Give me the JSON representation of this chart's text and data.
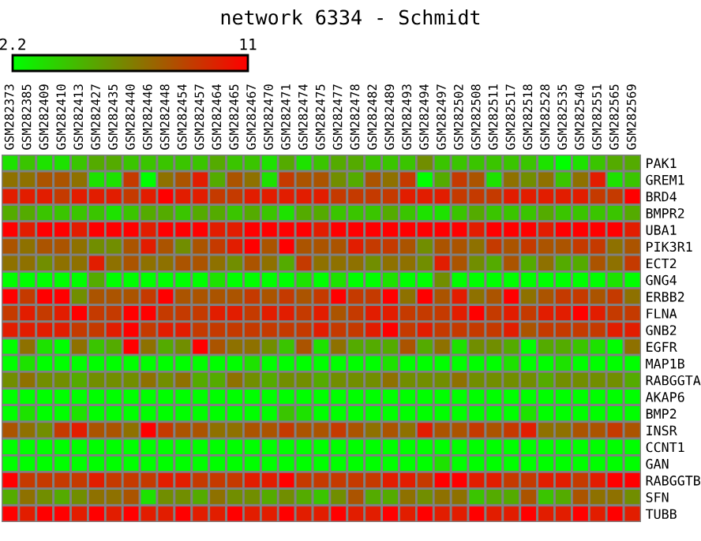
{
  "chart_data": {
    "type": "heatmap",
    "title": "network 6334 - Schmidt",
    "categories": [
      "GSM282373",
      "GSM282385",
      "GSM282409",
      "GSM282410",
      "GSM282413",
      "GSM282427",
      "GSM282435",
      "GSM282440",
      "GSM282446",
      "GSM282448",
      "GSM282454",
      "GSM282457",
      "GSM282464",
      "GSM282465",
      "GSM282467",
      "GSM282470",
      "GSM282471",
      "GSM282474",
      "GSM282475",
      "GSM282477",
      "GSM282478",
      "GSM282482",
      "GSM282489",
      "GSM282493",
      "GSM282494",
      "GSM282497",
      "GSM282502",
      "GSM282508",
      "GSM282511",
      "GSM282517",
      "GSM282518",
      "GSM282528",
      "GSM282535",
      "GSM282540",
      "GSM282551",
      "GSM282565",
      "GSM282569"
    ],
    "y_categories": [
      "PAK1",
      "GREM1",
      "BRD4",
      "BMPR2",
      "UBA1",
      "PIK3R1",
      "ECT2",
      "GNG4",
      "ERBB2",
      "FLNA",
      "GNB2",
      "EGFR",
      "MAP1B",
      "RABGGTA",
      "AKAP6",
      "BMP2",
      "INSR",
      "CCNT1",
      "GAN",
      "RABGGTB",
      "SFN",
      "TUBB"
    ],
    "clim": [
      2.2,
      11
    ],
    "cticks": [
      2.2,
      11
    ],
    "cells": [
      [
        3.2,
        4.2,
        3.2,
        3.2,
        4.2,
        5.1,
        5.1,
        4.2,
        4.2,
        4.2,
        4.2,
        4.2,
        5.1,
        4.2,
        4.2,
        3.2,
        5.1,
        3.2,
        4.2,
        5.1,
        5.1,
        4.2,
        4.2,
        4.2,
        6.1,
        4.2,
        4.2,
        4.2,
        4.2,
        4.2,
        4.2,
        3.2,
        2.2,
        3.2,
        4.2,
        5.1,
        5.1
      ],
      [
        7.1,
        7.1,
        8.1,
        8.1,
        7.1,
        3.2,
        3.2,
        9,
        2.2,
        7.1,
        8.1,
        10,
        5.1,
        8.1,
        7.1,
        3.2,
        9,
        8.1,
        8.1,
        6.1,
        5.1,
        8.1,
        7.1,
        9,
        2.2,
        5.1,
        9,
        8.1,
        3.2,
        7.1,
        6.1,
        7.1,
        4.2,
        7.1,
        10,
        3.2,
        4.2
      ],
      [
        10,
        10,
        10,
        9,
        10,
        10,
        10,
        9,
        10,
        11,
        10,
        10,
        9,
        9,
        10,
        10,
        10,
        10,
        10,
        9,
        9,
        9,
        9,
        10,
        10,
        10,
        9,
        9,
        9,
        10,
        10,
        10,
        10,
        10,
        9,
        9,
        11
      ],
      [
        5.1,
        5.1,
        4.2,
        4.2,
        4.2,
        4.2,
        3.2,
        4.2,
        5.1,
        5.1,
        4.2,
        5.1,
        5.1,
        4.2,
        5.1,
        4.2,
        3.2,
        5.1,
        5.1,
        4.2,
        4.2,
        4.2,
        5.1,
        4.2,
        3.2,
        3.2,
        4.2,
        5.1,
        4.2,
        4.2,
        4.2,
        5.1,
        4.2,
        4.2,
        4.2,
        4.2,
        5.1
      ],
      [
        11,
        10,
        11,
        11,
        10,
        11,
        11,
        11,
        10,
        11,
        11,
        11,
        10,
        10,
        11,
        11,
        11,
        11,
        10,
        11,
        11,
        11,
        11,
        11,
        11,
        11,
        11,
        10,
        11,
        11,
        11,
        10,
        11,
        11,
        11,
        11,
        10
      ],
      [
        8.1,
        7.1,
        8.1,
        8.1,
        7.1,
        6.1,
        6.1,
        8.1,
        10,
        8.1,
        6.1,
        8.1,
        9,
        10,
        11,
        8.1,
        11,
        8.1,
        8.1,
        8.1,
        10,
        9,
        9,
        8.1,
        6.1,
        8.1,
        8.1,
        7.1,
        9,
        8.1,
        9,
        8.1,
        8.1,
        9,
        9,
        7.1,
        8.1
      ],
      [
        7.1,
        7.1,
        6.1,
        7.1,
        7.1,
        10,
        7.1,
        8.1,
        7.1,
        7.1,
        8.1,
        8.1,
        7.1,
        6.1,
        8.1,
        7.1,
        5.1,
        9,
        7.1,
        7.1,
        7.1,
        6.1,
        7.1,
        7.1,
        6.1,
        10,
        8.1,
        6.1,
        5.1,
        8.1,
        5.1,
        7.1,
        5.1,
        5.1,
        8.1,
        7.1,
        9
      ],
      [
        2.2,
        2.2,
        2.2,
        2.2,
        2.2,
        5.1,
        2.2,
        2.2,
        2.2,
        2.2,
        2.2,
        2.2,
        3.2,
        2.2,
        2.2,
        2.2,
        2.2,
        3.2,
        2.2,
        3.2,
        2.2,
        2.2,
        3.2,
        2.2,
        2.2,
        6.1,
        2.2,
        2.2,
        2.2,
        2.2,
        2.2,
        2.2,
        2.2,
        2.2,
        2.2,
        3.2,
        2.2
      ],
      [
        11,
        9,
        11,
        11,
        6.1,
        8.1,
        8.1,
        8.1,
        9,
        11,
        8.1,
        8.1,
        8.1,
        8.1,
        9,
        8.1,
        9,
        8.1,
        9,
        11,
        9,
        9,
        11,
        7.1,
        11,
        8.1,
        10,
        7.1,
        8.1,
        11,
        7.1,
        8.1,
        9,
        9,
        8.1,
        9,
        7.1
      ],
      [
        9,
        10,
        9,
        10,
        11,
        9,
        9,
        11,
        11,
        9,
        9,
        9,
        10,
        10,
        9,
        10,
        10,
        9,
        10,
        8.1,
        9,
        10,
        10,
        9,
        9,
        9,
        10,
        11,
        9,
        10,
        9,
        10,
        10,
        11,
        10,
        9,
        9
      ],
      [
        10,
        10,
        10,
        10,
        9,
        9,
        10,
        11,
        9,
        10,
        10,
        9,
        9,
        9,
        9,
        9,
        9,
        9,
        10,
        9,
        9,
        10,
        11,
        9,
        10,
        9,
        9,
        9,
        9,
        10,
        8.1,
        9,
        9,
        9,
        9,
        10,
        10
      ],
      [
        2.2,
        7.1,
        3.2,
        2.2,
        7.1,
        4.2,
        5.1,
        11,
        7.1,
        5.1,
        6.1,
        11,
        8.1,
        7.1,
        7.1,
        6.1,
        4.2,
        8.1,
        3.2,
        7.1,
        5.1,
        5.1,
        5.1,
        8.1,
        5.1,
        7.1,
        3.2,
        6.1,
        6.1,
        5.1,
        2.2,
        5.1,
        5.1,
        4.2,
        3.2,
        2.2,
        7.1
      ],
      [
        2.2,
        3.2,
        2.2,
        2.2,
        2.2,
        2.2,
        2.2,
        2.2,
        2.2,
        2.2,
        2.2,
        2.2,
        2.2,
        2.2,
        3.2,
        2.2,
        2.2,
        2.2,
        2.2,
        2.2,
        2.2,
        2.2,
        3.2,
        2.2,
        2.2,
        2.2,
        2.2,
        2.2,
        2.2,
        3.2,
        2.2,
        2.2,
        3.2,
        2.2,
        2.2,
        2.2,
        2.2
      ],
      [
        6.1,
        7.1,
        6.1,
        6.1,
        5.1,
        6.1,
        6.1,
        6.1,
        7.1,
        6.1,
        7.1,
        5.1,
        5.1,
        7.1,
        6.1,
        5.1,
        6.1,
        6.1,
        5.1,
        6.1,
        6.1,
        6.1,
        7.1,
        6.1,
        6.1,
        6.1,
        7.1,
        6.1,
        6.1,
        6.1,
        6.1,
        5.1,
        6.1,
        6.1,
        6.1,
        6.1,
        5.1
      ],
      [
        2.2,
        2.2,
        2.2,
        2.2,
        2.2,
        2.2,
        2.2,
        2.2,
        2.2,
        2.2,
        2.2,
        2.2,
        2.2,
        2.2,
        2.2,
        2.2,
        2.2,
        2.2,
        2.2,
        2.2,
        2.2,
        2.2,
        2.2,
        2.2,
        2.2,
        2.2,
        2.2,
        2.2,
        2.2,
        2.2,
        2.2,
        2.2,
        2.2,
        2.2,
        2.2,
        2.2,
        2.2
      ],
      [
        2.2,
        3.2,
        2.2,
        2.2,
        3.2,
        2.2,
        2.2,
        2.2,
        2.2,
        2.2,
        2.2,
        2.2,
        2.2,
        2.2,
        2.2,
        2.2,
        4.2,
        3.2,
        2.2,
        2.2,
        2.2,
        2.2,
        2.2,
        2.2,
        2.2,
        2.2,
        2.2,
        2.2,
        2.2,
        2.2,
        3.2,
        2.2,
        2.2,
        2.2,
        2.2,
        2.2,
        2.2
      ],
      [
        8.1,
        7.1,
        6.1,
        9,
        10,
        8.1,
        8.1,
        7.1,
        11,
        9,
        8.1,
        8.1,
        7.1,
        7.1,
        8.1,
        8.1,
        9,
        8.1,
        8.1,
        9,
        8.1,
        7.1,
        8.1,
        7.1,
        10,
        8.1,
        8.1,
        9,
        8.1,
        9,
        10,
        7.1,
        7.1,
        8.1,
        8.1,
        9,
        8.1
      ],
      [
        2.2,
        2.2,
        2.2,
        2.2,
        2.2,
        2.2,
        2.2,
        2.2,
        2.2,
        2.2,
        2.2,
        2.2,
        2.2,
        2.2,
        2.2,
        2.2,
        2.2,
        2.2,
        2.2,
        2.2,
        2.2,
        2.2,
        2.2,
        2.2,
        2.2,
        2.2,
        2.2,
        2.2,
        2.2,
        2.2,
        2.2,
        2.2,
        2.2,
        2.2,
        2.2,
        2.2,
        2.2
      ],
      [
        2.2,
        2.2,
        2.2,
        2.2,
        2.2,
        2.2,
        2.2,
        2.2,
        2.2,
        2.2,
        2.2,
        2.2,
        2.2,
        2.2,
        2.2,
        2.2,
        2.2,
        2.2,
        2.2,
        2.2,
        2.2,
        2.2,
        2.2,
        2.2,
        2.2,
        3.2,
        2.2,
        2.2,
        2.2,
        2.2,
        2.2,
        2.2,
        2.2,
        2.2,
        2.2,
        2.2,
        2.2
      ],
      [
        11,
        9,
        9,
        9,
        9,
        10,
        9,
        9,
        9,
        10,
        10,
        9,
        9,
        9,
        10,
        10,
        11,
        9,
        9,
        9,
        9,
        9,
        10,
        10,
        9,
        11,
        11,
        10,
        10,
        9,
        9,
        10,
        10,
        9,
        10,
        11,
        11
      ],
      [
        5.1,
        7.1,
        6.1,
        5.1,
        6.1,
        7.1,
        7.1,
        8.1,
        3.2,
        6.1,
        6.1,
        5.1,
        7.1,
        6.1,
        6.1,
        5.1,
        6.1,
        5.1,
        4.2,
        6.1,
        8.1,
        5.1,
        5.1,
        7.1,
        6.1,
        7.1,
        7.1,
        4.2,
        5.1,
        5.1,
        8.1,
        4.2,
        5.1,
        8.1,
        7.1,
        7.1,
        6.1
      ],
      [
        11,
        10,
        11,
        11,
        10,
        11,
        10,
        11,
        10,
        10,
        11,
        10,
        10,
        11,
        10,
        10,
        11,
        10,
        10,
        11,
        10,
        10,
        11,
        10,
        11,
        10,
        10,
        11,
        10,
        10,
        11,
        10,
        10,
        11,
        10,
        11,
        10
      ]
    ]
  }
}
